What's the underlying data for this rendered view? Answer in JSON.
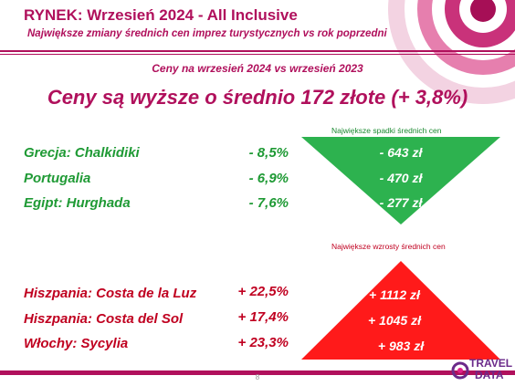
{
  "header": {
    "title": "RYNEK: Wrzesień 2024 - All Inclusive",
    "subtitle": "Największe zmiany średnich cen imprez turystycznych vs rok poprzedni"
  },
  "section_title": "Ceny na wrzesień 2024 vs wrzesień 2023",
  "headline": "Ceny są wyższe o średnio 172 złote (+ 3,8%)",
  "decreases": {
    "label": "Największe spadki średnich cen",
    "rows": [
      {
        "name": "Grecja: Chalkidiki",
        "pct": "- 8,5%",
        "amount": "- 643 zł"
      },
      {
        "name": "Portugalia",
        "pct": "- 6,9%",
        "amount": "- 470 zł"
      },
      {
        "name": "Egipt: Hurghada",
        "pct": "- 7,6%",
        "amount": "- 277 zł"
      }
    ]
  },
  "increases": {
    "label": "Największe wzrosty średnich cen",
    "rows": [
      {
        "name": "Hiszpania: Costa de la Luz",
        "pct": "+ 22,5%",
        "amount": "+ 1112 zł"
      },
      {
        "name": "Hiszpania: Costa del Sol",
        "pct": "+ 17,4%",
        "amount": "+ 1045 zł"
      },
      {
        "name": "Włochy: Sycylia",
        "pct": "+ 23,3%",
        "amount": "+ 983 zł"
      }
    ]
  },
  "footer": {
    "page_number": "8",
    "logo_top": "TRAVEL",
    "logo_bottom": "DATA"
  },
  "colors": {
    "brand": "#b0105c",
    "green": "#1f9a35",
    "triangle_green": "#2db24f",
    "red": "#c00020",
    "triangle_red": "#ff1a1a"
  }
}
